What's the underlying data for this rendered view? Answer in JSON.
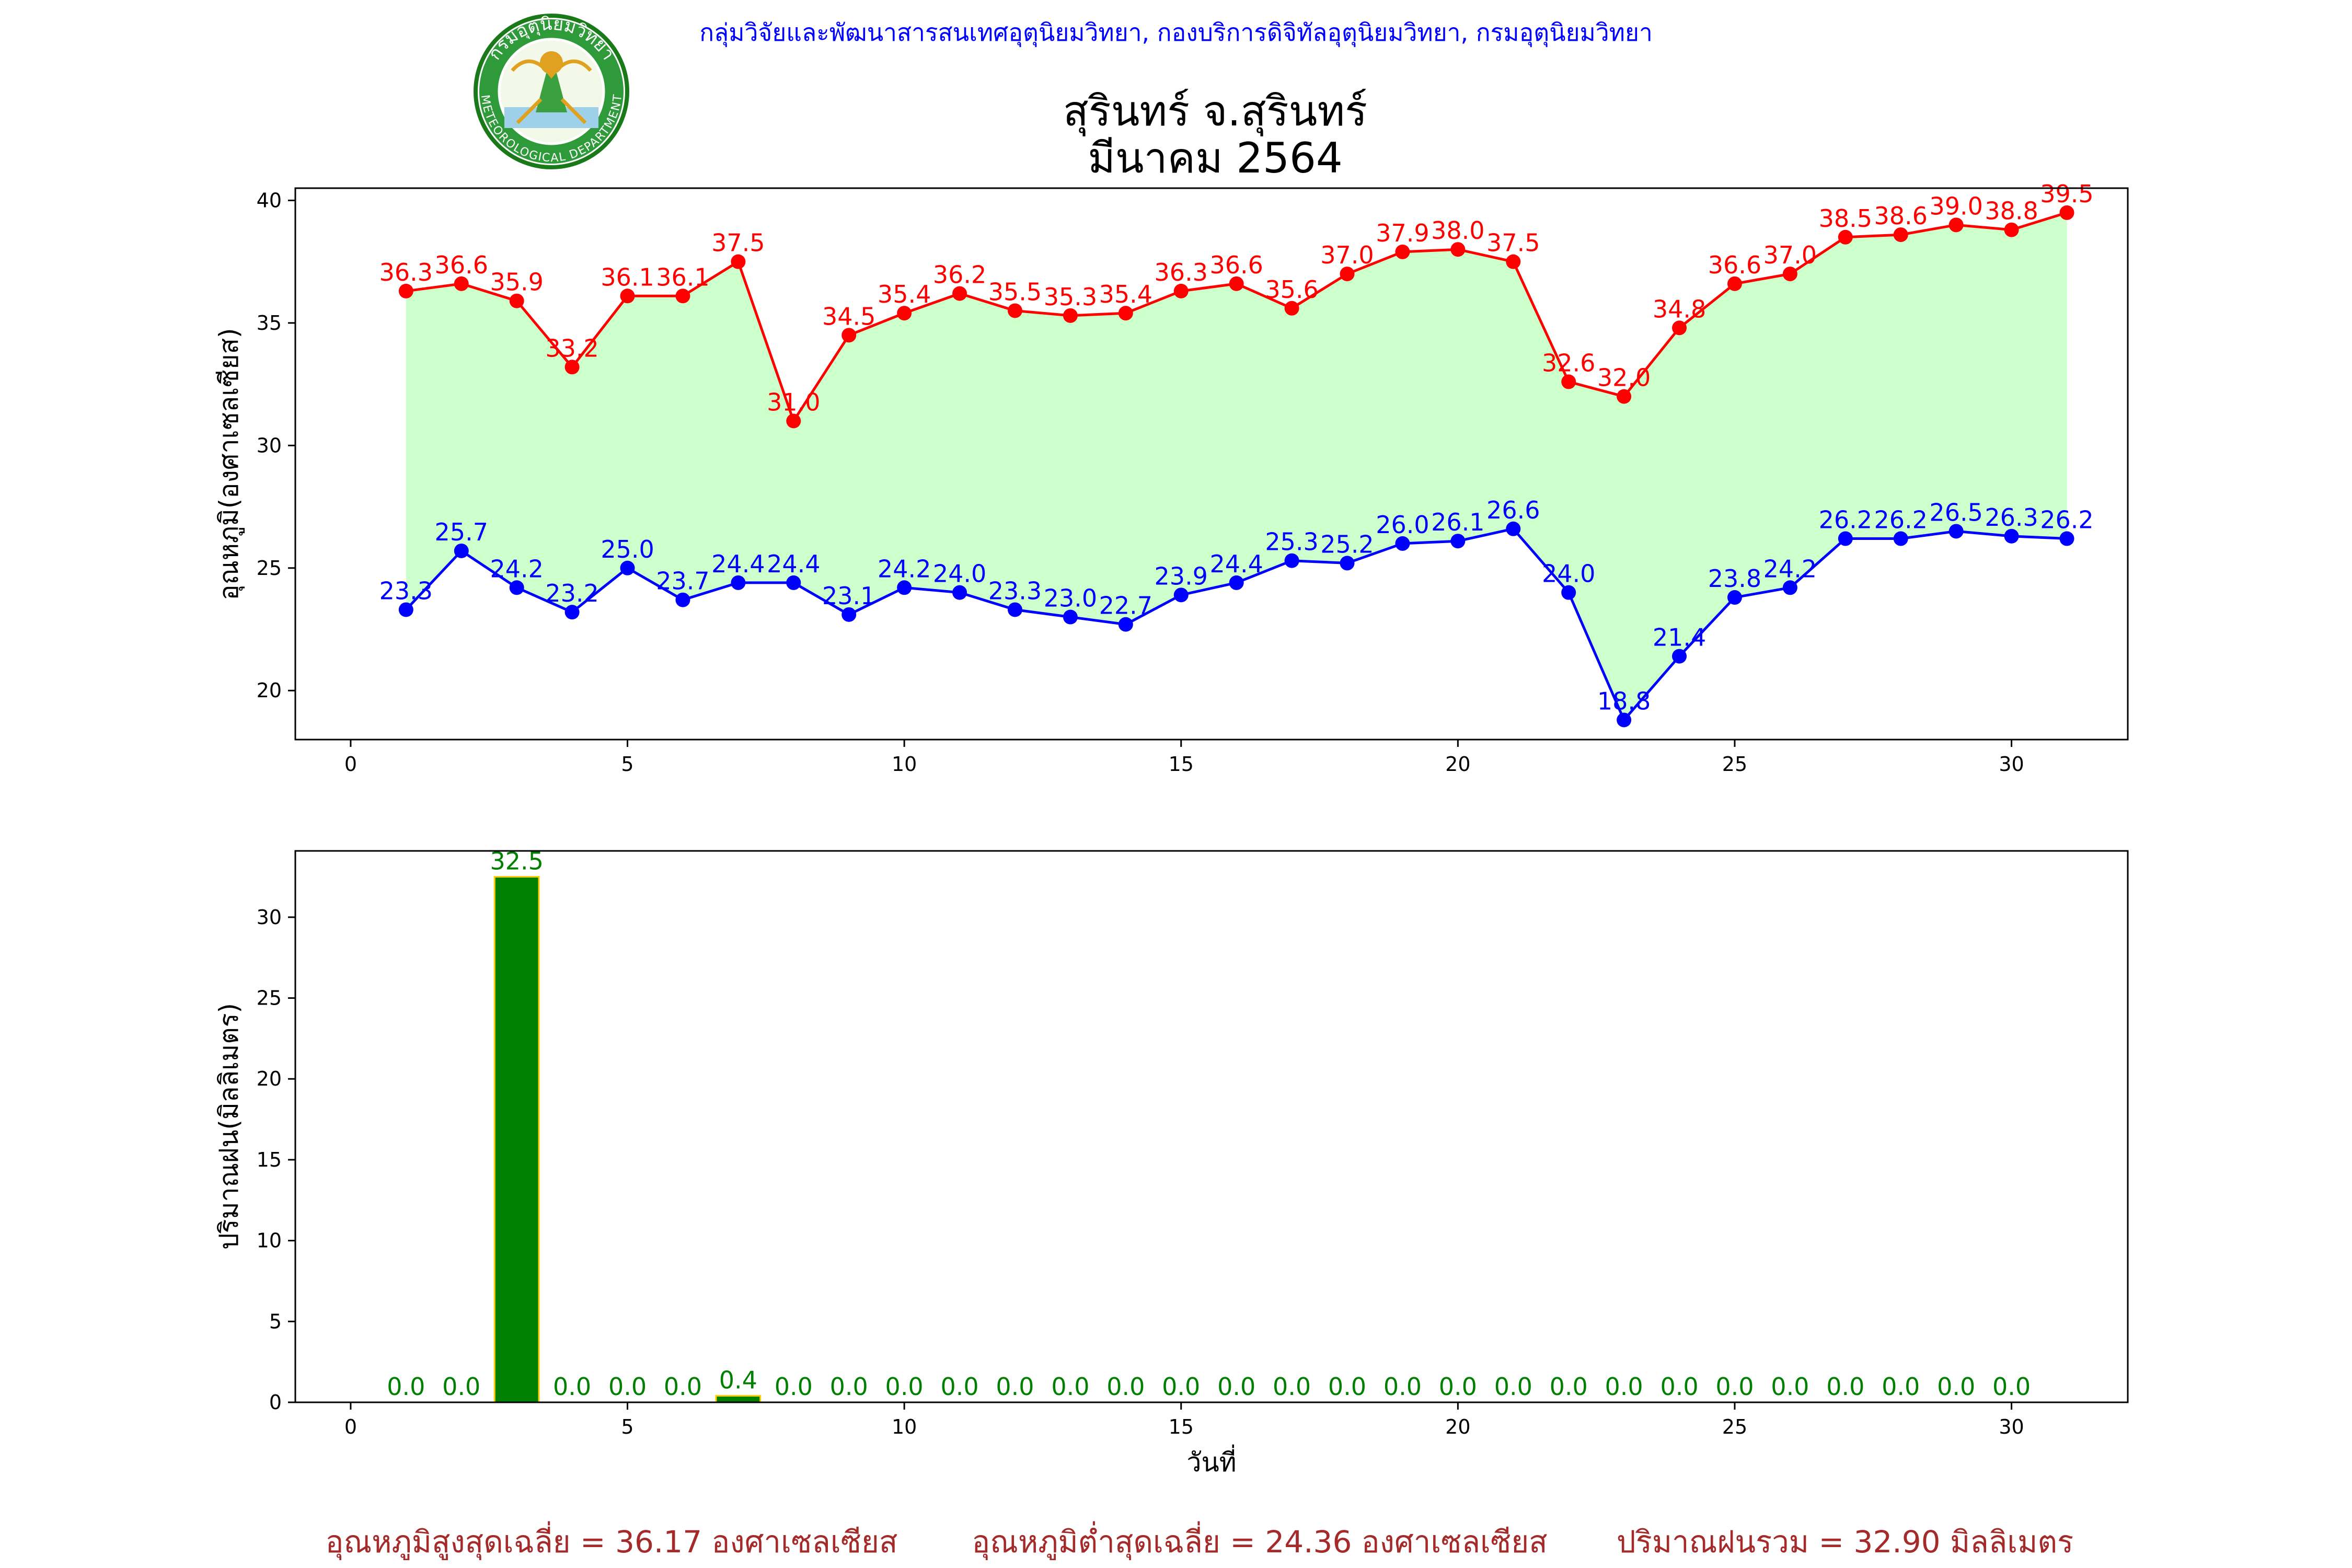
{
  "header": {
    "agency": "กลุ่มวิจัยและพัฒนาสารสนเทศอุตุนิยมวิทยา, กองบริการดิจิทัลอุตุนิยมวิทยา, กรมอุตุนิยมวิทยา",
    "agency_color": "#0000ff",
    "logo": {
      "name": "meteorological-department-seal",
      "text_top": "กรมอุตุนิยมวิทยา",
      "text_bottom": "METEOROLOGICAL DEPARTMENT"
    }
  },
  "title": {
    "line1": "สุรินทร์ จ.สุรินทร์",
    "line2": "มีนาคม 2564"
  },
  "footer": {
    "avg_max": "อุณหภูมิสูงสุดเฉลี่ย = 36.17 องศาเซลเซียส",
    "avg_min": "อุณหภูมิต่ำสุดเฉลี่ย = 24.36 องศาเซลเซียส",
    "total_rain": "ปริมาณฝนรวม = 32.90 มิลลิเมตร",
    "color": "#a52a2a"
  },
  "chart_data": [
    {
      "type": "line",
      "ylabel": "อุณหภูมิ(องศาเซลเซียส)",
      "xlabel": "",
      "xlim": [
        -1,
        32.1
      ],
      "ylim": [
        18,
        40.5
      ],
      "xticks": [
        0,
        5,
        10,
        15,
        20,
        25,
        30
      ],
      "yticks": [
        20,
        25,
        30,
        35,
        40
      ],
      "grid": false,
      "fill_between_color": "#ccffcc",
      "x": [
        1,
        2,
        3,
        4,
        5,
        6,
        7,
        8,
        9,
        10,
        11,
        12,
        13,
        14,
        15,
        16,
        17,
        18,
        19,
        20,
        21,
        22,
        23,
        24,
        25,
        26,
        27,
        28,
        29,
        30,
        31
      ],
      "series": [
        {
          "color": "#ff0000",
          "values": [
            36.3,
            36.6,
            35.9,
            33.2,
            36.1,
            36.1,
            37.5,
            31.0,
            34.5,
            35.4,
            36.2,
            35.5,
            35.3,
            35.4,
            36.3,
            36.6,
            35.6,
            37.0,
            37.9,
            38.0,
            37.5,
            32.6,
            32.0,
            34.8,
            36.6,
            37.0,
            38.5,
            38.6,
            39.0,
            38.8,
            39.5
          ]
        },
        {
          "color": "#0000ff",
          "values": [
            23.3,
            25.7,
            24.2,
            23.2,
            25.0,
            23.7,
            24.4,
            24.4,
            23.1,
            24.2,
            24.0,
            23.3,
            23.0,
            22.7,
            23.9,
            24.4,
            25.3,
            25.2,
            26.0,
            26.1,
            26.6,
            24.0,
            18.8,
            21.4,
            23.8,
            24.2,
            26.2,
            26.2,
            26.5,
            26.3,
            26.2
          ]
        }
      ]
    },
    {
      "type": "bar",
      "ylabel": "ปริมาณฝน(มิลลิเมตร)",
      "xlabel": "วันที่",
      "xlim": [
        -1,
        32.1
      ],
      "ylim": [
        0,
        34.1
      ],
      "xticks": [
        0,
        5,
        10,
        15,
        20,
        25,
        30
      ],
      "yticks": [
        0,
        5,
        10,
        15,
        20,
        25,
        30
      ],
      "grid": false,
      "bar_color": "#008000",
      "bar_edge_color": "#ffcc00",
      "label_color": "#008000",
      "x": [
        1,
        2,
        3,
        4,
        5,
        6,
        7,
        8,
        9,
        10,
        11,
        12,
        13,
        14,
        15,
        16,
        17,
        18,
        19,
        20,
        21,
        22,
        23,
        24,
        25,
        26,
        27,
        28,
        29,
        30
      ],
      "values": [
        0.0,
        0.0,
        32.5,
        0.0,
        0.0,
        0.0,
        0.4,
        0.0,
        0.0,
        0.0,
        0.0,
        0.0,
        0.0,
        0.0,
        0.0,
        0.0,
        0.0,
        0.0,
        0.0,
        0.0,
        0.0,
        0.0,
        0.0,
        0.0,
        0.0,
        0.0,
        0.0,
        0.0,
        0.0,
        0.0
      ]
    }
  ]
}
